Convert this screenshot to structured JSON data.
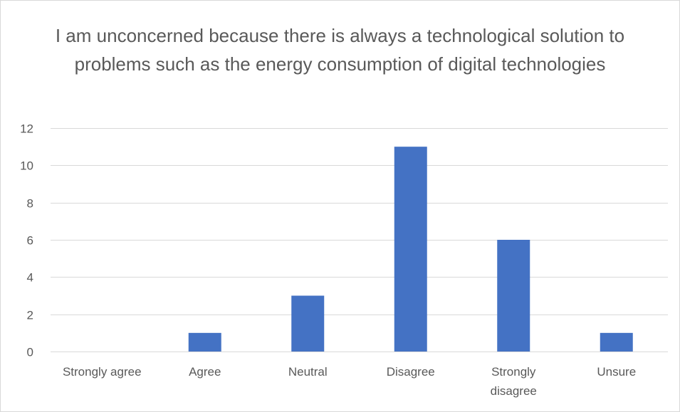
{
  "chart_data": {
    "type": "bar",
    "title": "I am unconcerned because there is always a technological solution to problems such as the energy consumption of digital technologies",
    "categories": [
      "Strongly agree",
      "Agree",
      "Neutral",
      "Disagree",
      "Strongly disagree",
      "Unsure"
    ],
    "category_lines": [
      [
        "Strongly agree"
      ],
      [
        "Agree"
      ],
      [
        "Neutral"
      ],
      [
        "Disagree"
      ],
      [
        "Strongly",
        "disagree"
      ],
      [
        "Unsure"
      ]
    ],
    "values": [
      0,
      1,
      3,
      11,
      6,
      1
    ],
    "xlabel": "",
    "ylabel": "",
    "ylim": [
      0,
      12
    ],
    "yticks": [
      0,
      2,
      4,
      6,
      8,
      10,
      12
    ],
    "grid": true,
    "legend": "none",
    "bar_color": "#4472c4",
    "grid_color": "#d9d9d9",
    "text_color": "#595959"
  }
}
